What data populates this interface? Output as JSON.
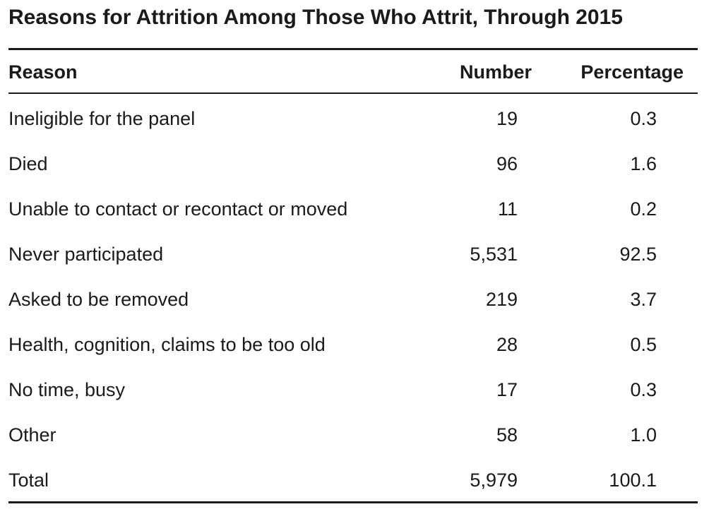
{
  "title": "Reasons for Attrition Among Those Who Attrit, Through 2015",
  "table": {
    "header": [
      "Reason",
      "Number",
      "Percentage"
    ],
    "rows": [
      [
        "Ineligible for the panel",
        "19",
        "0.3"
      ],
      [
        "Died",
        "96",
        "1.6"
      ],
      [
        "Unable to contact or recontact or moved",
        "11",
        "0.2"
      ],
      [
        "Never participated",
        "5,531",
        "92.5"
      ],
      [
        "Asked to be removed",
        "219",
        "3.7"
      ],
      [
        "Health, cognition, claims to be too old",
        "28",
        "0.5"
      ],
      [
        "No time, busy",
        "17",
        "0.3"
      ],
      [
        "Other",
        "58",
        "1.0"
      ],
      [
        "Total",
        "5,979",
        "100.1"
      ]
    ]
  }
}
